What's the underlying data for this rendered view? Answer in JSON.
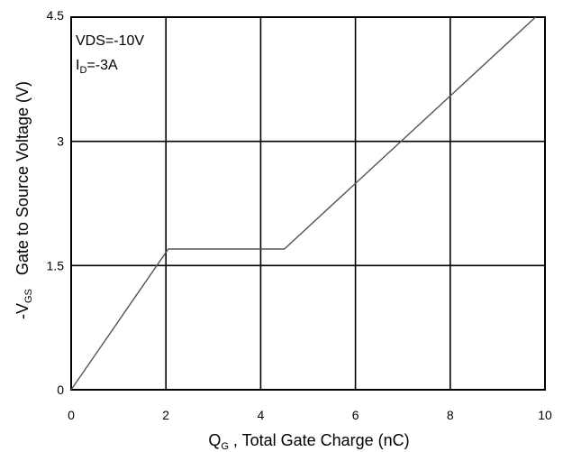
{
  "chart_data": {
    "type": "line",
    "title": "",
    "xlabel": {
      "main": "Q",
      "sub": "G",
      "rest": " , Total Gate Charge (nC)"
    },
    "ylabel": {
      "pre": "-V",
      "sub": "GS",
      "rest": "   Gate to Source Voltage (V)"
    },
    "xlim": [
      0,
      10
    ],
    "ylim": [
      0,
      4.5
    ],
    "x_ticks": [
      {
        "value": 0,
        "label": "0"
      },
      {
        "value": 2,
        "label": "2"
      },
      {
        "value": 4,
        "label": "4"
      },
      {
        "value": 6,
        "label": "6"
      },
      {
        "value": 8,
        "label": "8"
      },
      {
        "value": 10,
        "label": "10"
      }
    ],
    "y_ticks": [
      {
        "value": 0,
        "label": "0"
      },
      {
        "value": 1.5,
        "label": "1.5"
      },
      {
        "value": 3,
        "label": "3"
      },
      {
        "value": 4.5,
        "label": "4.5"
      }
    ],
    "grid": true,
    "series": [
      {
        "x": [
          0,
          2.05,
          4.5,
          9.8
        ],
        "y": [
          0,
          1.7,
          1.7,
          4.5
        ],
        "color": "#555555"
      }
    ],
    "annotations": {
      "line1": "VDS=-10V",
      "line2": {
        "pre": "I",
        "sub": "D",
        "rest": "=-3A"
      }
    }
  }
}
